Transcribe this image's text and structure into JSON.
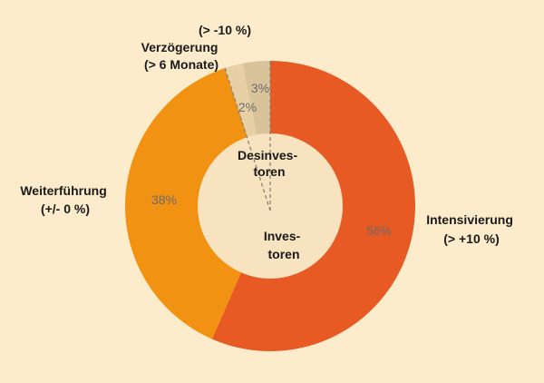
{
  "chart_data": {
    "type": "pie",
    "donut": true,
    "slices": [
      {
        "label": "Intensivierung (> +10 %)",
        "value": 56,
        "value_label": "56%",
        "color": "#e85a24",
        "group": "Investoren"
      },
      {
        "label": "Weiterführung (+/- 0 %)",
        "value": 38,
        "value_label": "38%",
        "color": "#f29212",
        "group": "Investoren"
      },
      {
        "label": "Verzögerung (> 6 Monate)",
        "value": 2,
        "value_label": "2%",
        "color": "#e6d0a4",
        "group": "Desinvestoren"
      },
      {
        "label": "(> -10 %)",
        "value": 3,
        "value_label": "3%",
        "color": "#d8c39a",
        "group": "Desinvestoren"
      }
    ],
    "outer_labels": {
      "intensivierung": [
        "Intensivierung",
        "(> +10 %)"
      ],
      "weiterfuehrung": [
        "Weiterführung",
        "(+/- 0 %)"
      ],
      "verzoegerung": [
        "Verzögerung",
        "(> 6 Monate)"
      ],
      "reduktion": [
        "(> -10 %)"
      ]
    },
    "center_labels": {
      "investoren": [
        "Inves-",
        "toren"
      ],
      "desinvestoren": [
        "Desinves-",
        "toren"
      ]
    },
    "colors": {
      "background": "#fdeccc",
      "inner_circle": "#f7e3bf",
      "divider": "#8c8070"
    }
  }
}
